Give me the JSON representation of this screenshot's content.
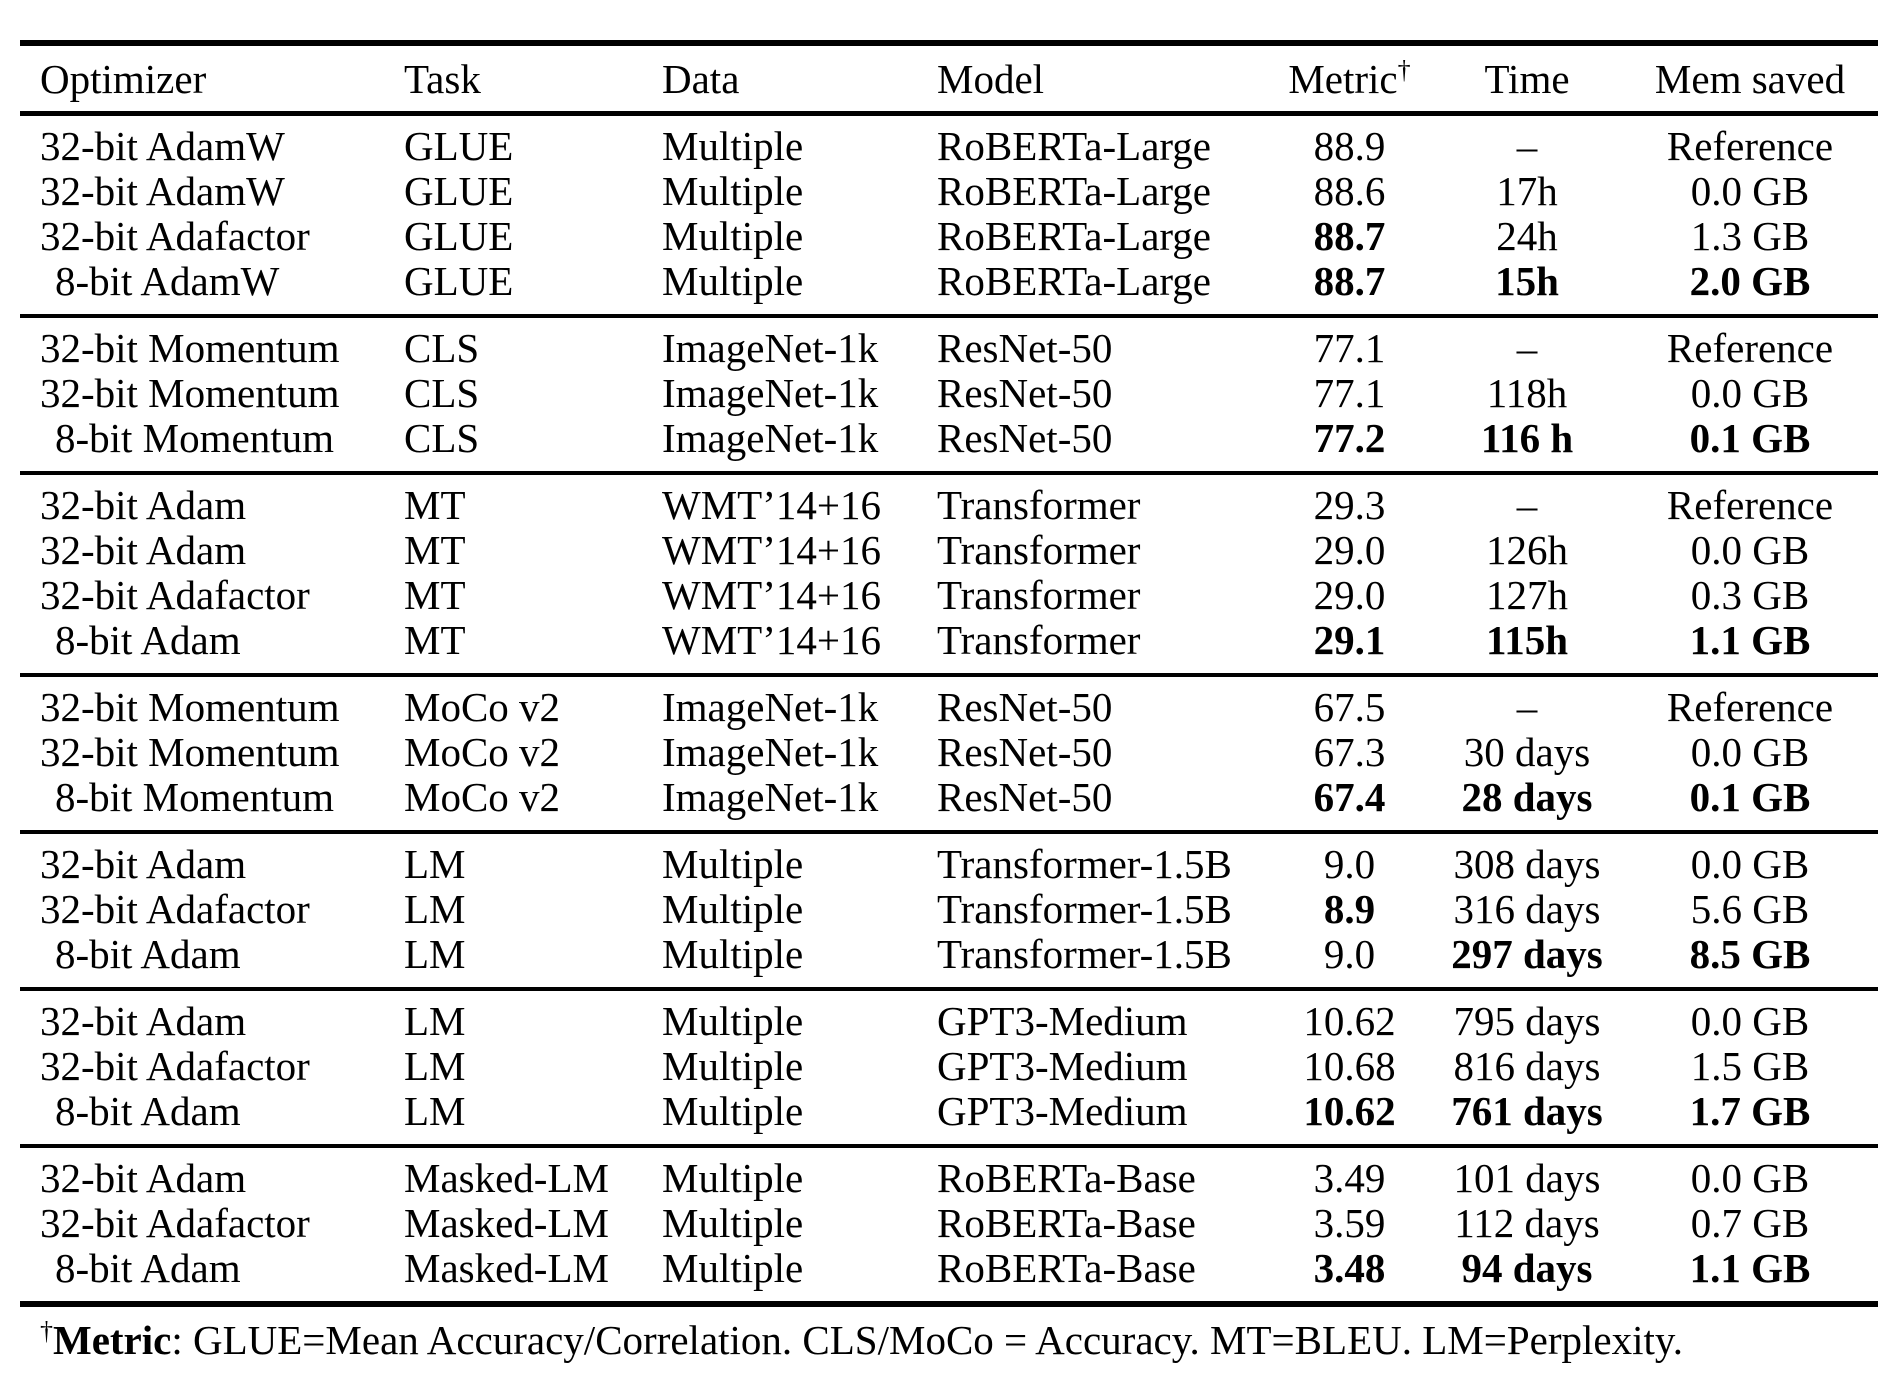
{
  "table": {
    "columns": [
      {
        "key": "optimizer",
        "label": "Optimizer"
      },
      {
        "key": "task",
        "label": "Task"
      },
      {
        "key": "data",
        "label": "Data"
      },
      {
        "key": "model",
        "label": "Model"
      },
      {
        "key": "metric",
        "label": "Metric",
        "sup": "†"
      },
      {
        "key": "time",
        "label": "Time"
      },
      {
        "key": "mem",
        "label": "Mem saved"
      }
    ],
    "sections": [
      {
        "rows": [
          {
            "optimizer": "32-bit AdamW",
            "task": "GLUE",
            "data": "Multiple",
            "model": "RoBERTa-Large",
            "metric": "88.9",
            "time": "–",
            "mem": "Reference",
            "bold": []
          },
          {
            "optimizer": "32-bit AdamW",
            "task": "GLUE",
            "data": "Multiple",
            "model": "RoBERTa-Large",
            "metric": "88.6",
            "time": "17h",
            "mem": "0.0 GB",
            "bold": []
          },
          {
            "optimizer": "32-bit Adafactor",
            "task": "GLUE",
            "data": "Multiple",
            "model": "RoBERTa-Large",
            "metric": "88.7",
            "time": "24h",
            "mem": "1.3 GB",
            "bold": [
              "metric"
            ]
          },
          {
            "optimizer": "8-bit AdamW",
            "task": "GLUE",
            "data": "Multiple",
            "model": "RoBERTa-Large",
            "metric": "88.7",
            "time": "15h",
            "mem": "2.0 GB",
            "bold": [
              "metric",
              "time",
              "mem"
            ]
          }
        ]
      },
      {
        "rows": [
          {
            "optimizer": "32-bit Momentum",
            "task": "CLS",
            "data": "ImageNet-1k",
            "model": "ResNet-50",
            "metric": "77.1",
            "time": "–",
            "mem": "Reference",
            "bold": []
          },
          {
            "optimizer": "32-bit Momentum",
            "task": "CLS",
            "data": "ImageNet-1k",
            "model": "ResNet-50",
            "metric": "77.1",
            "time": "118h",
            "mem": "0.0 GB",
            "bold": []
          },
          {
            "optimizer": "8-bit Momentum",
            "task": "CLS",
            "data": "ImageNet-1k",
            "model": "ResNet-50",
            "metric": "77.2",
            "time": "116 h",
            "mem": "0.1 GB",
            "bold": [
              "metric",
              "time",
              "mem"
            ]
          }
        ]
      },
      {
        "rows": [
          {
            "optimizer": "32-bit Adam",
            "task": "MT",
            "data": "WMT’14+16",
            "model": "Transformer",
            "metric": "29.3",
            "time": "–",
            "mem": "Reference",
            "bold": []
          },
          {
            "optimizer": "32-bit Adam",
            "task": "MT",
            "data": "WMT’14+16",
            "model": "Transformer",
            "metric": "29.0",
            "time": "126h",
            "mem": "0.0 GB",
            "bold": []
          },
          {
            "optimizer": "32-bit Adafactor",
            "task": "MT",
            "data": "WMT’14+16",
            "model": "Transformer",
            "metric": "29.0",
            "time": "127h",
            "mem": "0.3 GB",
            "bold": []
          },
          {
            "optimizer": "8-bit Adam",
            "task": "MT",
            "data": "WMT’14+16",
            "model": "Transformer",
            "metric": "29.1",
            "time": "115h",
            "mem": "1.1 GB",
            "bold": [
              "metric",
              "time",
              "mem"
            ]
          }
        ]
      },
      {
        "rows": [
          {
            "optimizer": "32-bit Momentum",
            "task": "MoCo v2",
            "data": "ImageNet-1k",
            "model": "ResNet-50",
            "metric": "67.5",
            "time": "–",
            "mem": "Reference",
            "bold": []
          },
          {
            "optimizer": "32-bit Momentum",
            "task": "MoCo v2",
            "data": "ImageNet-1k",
            "model": "ResNet-50",
            "metric": "67.3",
            "time": "30 days",
            "mem": "0.0 GB",
            "bold": []
          },
          {
            "optimizer": "8-bit Momentum",
            "task": "MoCo v2",
            "data": "ImageNet-1k",
            "model": "ResNet-50",
            "metric": "67.4",
            "time": "28 days",
            "mem": "0.1 GB",
            "bold": [
              "metric",
              "time",
              "mem"
            ]
          }
        ]
      },
      {
        "rows": [
          {
            "optimizer": "32-bit Adam",
            "task": "LM",
            "data": "Multiple",
            "model": "Transformer-1.5B",
            "metric": "9.0",
            "time": "308 days",
            "mem": "0.0 GB",
            "bold": []
          },
          {
            "optimizer": "32-bit Adafactor",
            "task": "LM",
            "data": "Multiple",
            "model": "Transformer-1.5B",
            "metric": "8.9",
            "time": "316 days",
            "mem": "5.6 GB",
            "bold": [
              "metric"
            ]
          },
          {
            "optimizer": "8-bit Adam",
            "task": "LM",
            "data": "Multiple",
            "model": "Transformer-1.5B",
            "metric": "9.0",
            "time": "297 days",
            "mem": "8.5 GB",
            "bold": [
              "time",
              "mem"
            ]
          }
        ]
      },
      {
        "rows": [
          {
            "optimizer": "32-bit Adam",
            "task": "LM",
            "data": "Multiple",
            "model": "GPT3-Medium",
            "metric": "10.62",
            "time": "795 days",
            "mem": "0.0 GB",
            "bold": []
          },
          {
            "optimizer": "32-bit Adafactor",
            "task": "LM",
            "data": "Multiple",
            "model": "GPT3-Medium",
            "metric": "10.68",
            "time": "816 days",
            "mem": "1.5 GB",
            "bold": []
          },
          {
            "optimizer": "8-bit Adam",
            "task": "LM",
            "data": "Multiple",
            "model": "GPT3-Medium",
            "metric": "10.62",
            "time": "761 days",
            "mem": "1.7 GB",
            "bold": [
              "metric",
              "time",
              "mem"
            ]
          }
        ]
      },
      {
        "rows": [
          {
            "optimizer": "32-bit Adam",
            "task": "Masked-LM",
            "data": "Multiple",
            "model": "RoBERTa-Base",
            "metric": "3.49",
            "time": "101 days",
            "mem": "0.0 GB",
            "bold": []
          },
          {
            "optimizer": "32-bit Adafactor",
            "task": "Masked-LM",
            "data": "Multiple",
            "model": "RoBERTa-Base",
            "metric": "3.59",
            "time": "112 days",
            "mem": "0.7 GB",
            "bold": []
          },
          {
            "optimizer": "8-bit Adam",
            "task": "Masked-LM",
            "data": "Multiple",
            "model": "RoBERTa-Base",
            "metric": "3.48",
            "time": "94 days",
            "mem": "1.1 GB",
            "bold": [
              "metric",
              "time",
              "mem"
            ]
          }
        ]
      }
    ]
  },
  "footnote": {
    "sup": "†",
    "label": "Metric",
    "rest": ": GLUE=Mean Accuracy/Correlation. CLS/MoCo = Accuracy. MT=BLEU. LM=Perplexity."
  }
}
